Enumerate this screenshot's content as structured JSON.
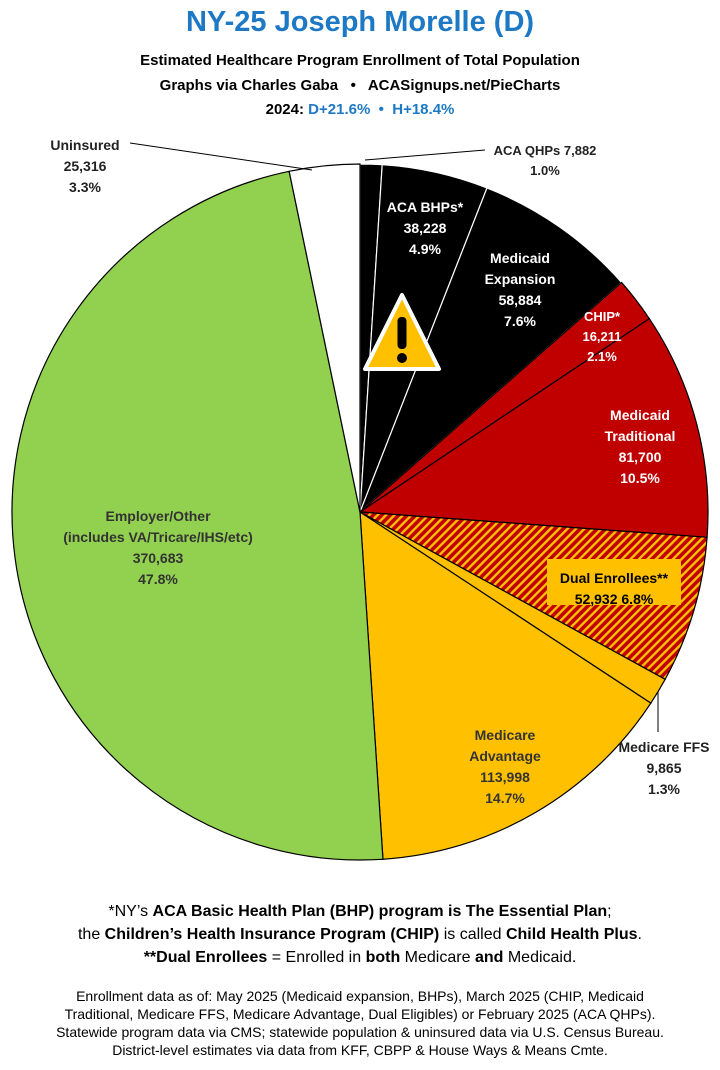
{
  "header": {
    "title": "NY-25 Joseph Morelle (D)",
    "subtitle": "Estimated Healthcare Program Enrollment of Total Population",
    "credit_left": "Graphs via Charles Gaba",
    "credit_sep": "•",
    "credit_right": "ACASignups.net/PieCharts",
    "lean_prefix": "2024:",
    "lean_d": "D+21.6%",
    "lean_sep": "•",
    "lean_h": "H+18.4%"
  },
  "chart_data": {
    "type": "pie",
    "start_angle_deg": 0,
    "direction": "clockwise",
    "slices": [
      {
        "label": "ACA QHPs",
        "value": 7882,
        "value_text": "7,882",
        "percent": "1.0%",
        "color": "#000000"
      },
      {
        "label": "ACA BHPs*",
        "value": 38228,
        "value_text": "38,228",
        "percent": "4.9%",
        "color": "#000000"
      },
      {
        "label": "Medicaid Expansion",
        "value": 58884,
        "value_text": "58,884",
        "percent": "7.6%",
        "color": "#000000"
      },
      {
        "label": "CHIP*",
        "value": 16211,
        "value_text": "16,211",
        "percent": "2.1%",
        "color": "#c00000"
      },
      {
        "label": "Medicaid Traditional",
        "value": 81700,
        "value_text": "81,700",
        "percent": "10.5%",
        "color": "#c00000"
      },
      {
        "label": "Dual Enrollees**",
        "value": 52932,
        "value_text": "52,932",
        "percent": "6.8%",
        "color": "#c00000",
        "pattern": "stripes",
        "pattern_color": "#ffc000"
      },
      {
        "label": "Medicare FFS",
        "value": 9865,
        "value_text": "9,865",
        "percent": "1.3%",
        "color": "#ffc000"
      },
      {
        "label": "Medicare Advantage",
        "value": 113998,
        "value_text": "113,998",
        "percent": "14.7%",
        "color": "#ffc000"
      },
      {
        "label": "Employer/Other",
        "label2": "(includes VA/Tricare/IHS/etc)",
        "value": 370683,
        "value_text": "370,683",
        "percent": "47.8%",
        "color": "#92d050"
      },
      {
        "label": "Uninsured",
        "value": 25316,
        "value_text": "25,316",
        "percent": "3.3%",
        "color": "#ffffff"
      }
    ],
    "warning_icon": "warning-triangle-icon"
  },
  "footnotes": {
    "line1": [
      "*NY’s ",
      "ACA Basic Health Plan (BHP) program is The Essential Plan",
      ";"
    ],
    "line2": [
      "the ",
      "Children’s Health Insurance Program (CHIP)",
      " is called ",
      "Child Health Plus",
      "."
    ],
    "line3": [
      "**Dual Enrollees",
      " = Enrolled in ",
      "both",
      " Medicare ",
      "and",
      " Medicaid."
    ],
    "source": [
      "Enrollment data as of: May 2025 (Medicaid expansion, BHPs), March 2025 (CHIP, Medicaid",
      "Traditional, Medicare FFS, Medicare Advantage, Dual Eligibles) or February 2025 (ACA QHPs).",
      "Statewide program data via CMS; statewide population & uninsured data via U.S. Census Bureau.",
      "District-level estimates via data from KFF, CBPP & House Ways & Means Cmte."
    ]
  }
}
